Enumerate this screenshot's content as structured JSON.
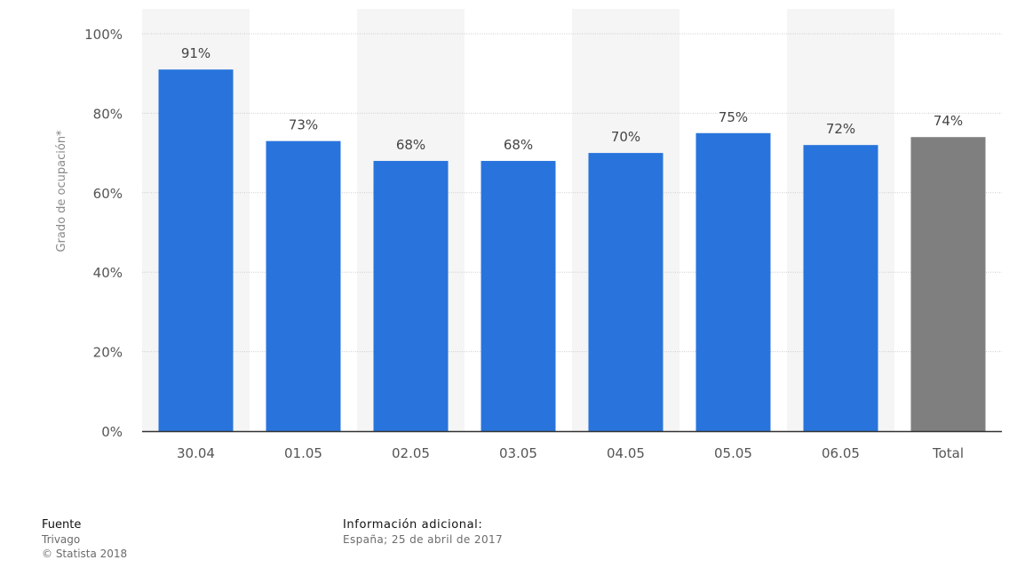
{
  "chart_data": {
    "type": "bar",
    "categories": [
      "30.04",
      "01.05",
      "02.05",
      "03.05",
      "04.05",
      "05.05",
      "06.05",
      "Total"
    ],
    "values": [
      91,
      73,
      68,
      68,
      70,
      75,
      72,
      74
    ],
    "value_labels": [
      "91%",
      "73%",
      "68%",
      "68%",
      "70%",
      "75%",
      "72%",
      "74%"
    ],
    "bar_colors": [
      "#2874dc",
      "#2874dc",
      "#2874dc",
      "#2874dc",
      "#2874dc",
      "#2874dc",
      "#2874dc",
      "#7f7f7f"
    ],
    "ylabel": "Grado de ocupación*",
    "ylim": [
      0,
      100
    ],
    "yticks": [
      0,
      20,
      40,
      60,
      80,
      100
    ],
    "ytick_labels": [
      "0%",
      "20%",
      "40%",
      "60%",
      "80%",
      "100%"
    ],
    "grid": true,
    "legend": "none"
  },
  "footer": {
    "source_heading": "Fuente",
    "source_name": "Trivago",
    "copyright": "© Statista 2018",
    "info_heading": "Información adicional:",
    "info_text": "España; 25 de abril de 2017"
  },
  "colors": {
    "bar": "#2874dc",
    "total_bar": "#7f7f7f",
    "band": "#f5f5f5",
    "grid": "#cccccc",
    "axis": "#333333",
    "text": "#555555"
  }
}
